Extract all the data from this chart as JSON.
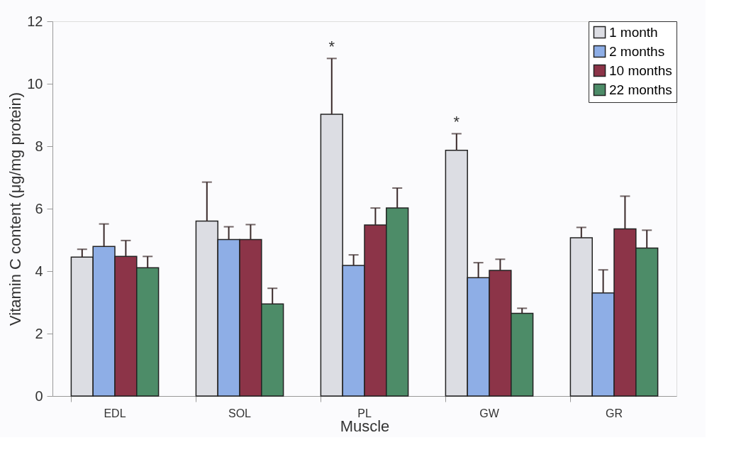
{
  "chart_data": {
    "type": "bar",
    "xlabel": "Muscle",
    "ylabel": "Vitamin C content (μg/mg protein)",
    "categories": [
      "EDL",
      "SOL",
      "PL",
      "GW",
      "GR"
    ],
    "series": [
      {
        "name": "1 month",
        "color": "#dcdde3",
        "values": [
          4.45,
          5.6,
          9.02,
          7.87,
          5.07
        ],
        "errors": [
          [
            4.45,
            4.7
          ],
          [
            5.6,
            6.85
          ],
          [
            9.02,
            10.81
          ],
          [
            7.87,
            8.4
          ],
          [
            5.07,
            5.4
          ]
        ]
      },
      {
        "name": "2 months",
        "color": "#8eaee6",
        "values": [
          4.79,
          5.01,
          4.18,
          3.79,
          3.3
        ],
        "errors": [
          [
            4.79,
            5.51
          ],
          [
            5.01,
            5.42
          ],
          [
            4.18,
            4.52
          ],
          [
            3.79,
            4.27
          ],
          [
            3.3,
            4.04
          ]
        ]
      },
      {
        "name": "10 months",
        "color": "#8c3448",
        "values": [
          4.47,
          5.01,
          5.48,
          4.02,
          5.35
        ],
        "errors": [
          [
            4.47,
            4.98
          ],
          [
            5.01,
            5.49
          ],
          [
            5.48,
            6.02
          ],
          [
            4.02,
            4.38
          ],
          [
            5.35,
            6.4
          ]
        ]
      },
      {
        "name": "22 months",
        "color": "#4d8c68",
        "values": [
          4.11,
          2.95,
          6.02,
          2.65,
          4.74
        ],
        "errors": [
          [
            4.11,
            4.47
          ],
          [
            2.95,
            3.45
          ],
          [
            6.02,
            6.66
          ],
          [
            2.65,
            2.81
          ],
          [
            4.74,
            5.31
          ]
        ]
      }
    ],
    "annotations": [
      "*",
      "*"
    ],
    "ylim": [
      0,
      12
    ],
    "yticks": [
      0,
      2,
      4,
      6,
      8,
      10,
      12
    ],
    "grid": false,
    "legend": "top right"
  }
}
